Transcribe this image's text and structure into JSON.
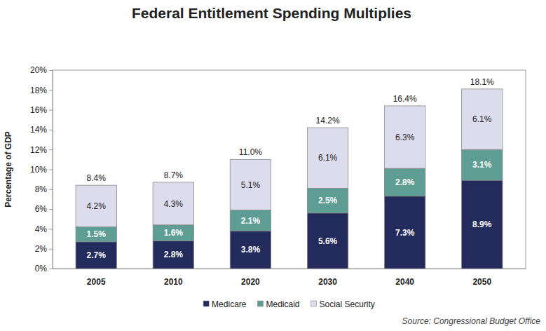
{
  "chart_data": {
    "type": "bar",
    "stacked": true,
    "title": "Federal Entitlement Spending Multiplies",
    "y_label": "Percentage of GDP",
    "source": "Source: Congressional Budget Office",
    "categories": [
      "2005",
      "2010",
      "2020",
      "2030",
      "2040",
      "2050"
    ],
    "series": [
      {
        "name": "Medicare",
        "color": "#232a5c",
        "values": [
          2.7,
          2.8,
          3.8,
          5.6,
          7.3,
          8.9
        ],
        "value_labels": [
          "2.7%",
          "2.8%",
          "3.8%",
          "5.6%",
          "7.3%",
          "8.9%"
        ]
      },
      {
        "name": "Medicaid",
        "color": "#5e9d93",
        "values": [
          1.5,
          1.6,
          2.1,
          2.5,
          2.8,
          3.1
        ],
        "value_labels": [
          "1.5%",
          "1.6%",
          "2.1%",
          "2.5%",
          "2.8%",
          "3.1%"
        ]
      },
      {
        "name": "Social Security",
        "color": "#dcdcec",
        "values": [
          4.2,
          4.3,
          5.1,
          6.1,
          6.3,
          6.1
        ],
        "value_labels": [
          "4.2%",
          "4.3%",
          "5.1%",
          "6.1%",
          "6.3%",
          "6.1%"
        ]
      }
    ],
    "totals": [
      8.4,
      8.7,
      11.0,
      14.2,
      16.4,
      18.1
    ],
    "total_labels": [
      "8.4%",
      "8.7%",
      "11.0%",
      "14.2%",
      "16.4%",
      "18.1%"
    ],
    "ylim": [
      0,
      20
    ],
    "yticks": [
      {
        "value": 0,
        "label": "0%"
      },
      {
        "value": 2,
        "label": "2%"
      },
      {
        "value": 4,
        "label": "4%"
      },
      {
        "value": 6,
        "label": "6%"
      },
      {
        "value": 8,
        "label": "8%"
      },
      {
        "value": 10,
        "label": "10%"
      },
      {
        "value": 12,
        "label": "12%"
      },
      {
        "value": 14,
        "label": "14%"
      },
      {
        "value": 16,
        "label": "16%"
      },
      {
        "value": 18,
        "label": "18%"
      },
      {
        "value": 20,
        "label": "20%"
      }
    ],
    "grid": false,
    "data_labels": true,
    "legend": "bottom"
  }
}
